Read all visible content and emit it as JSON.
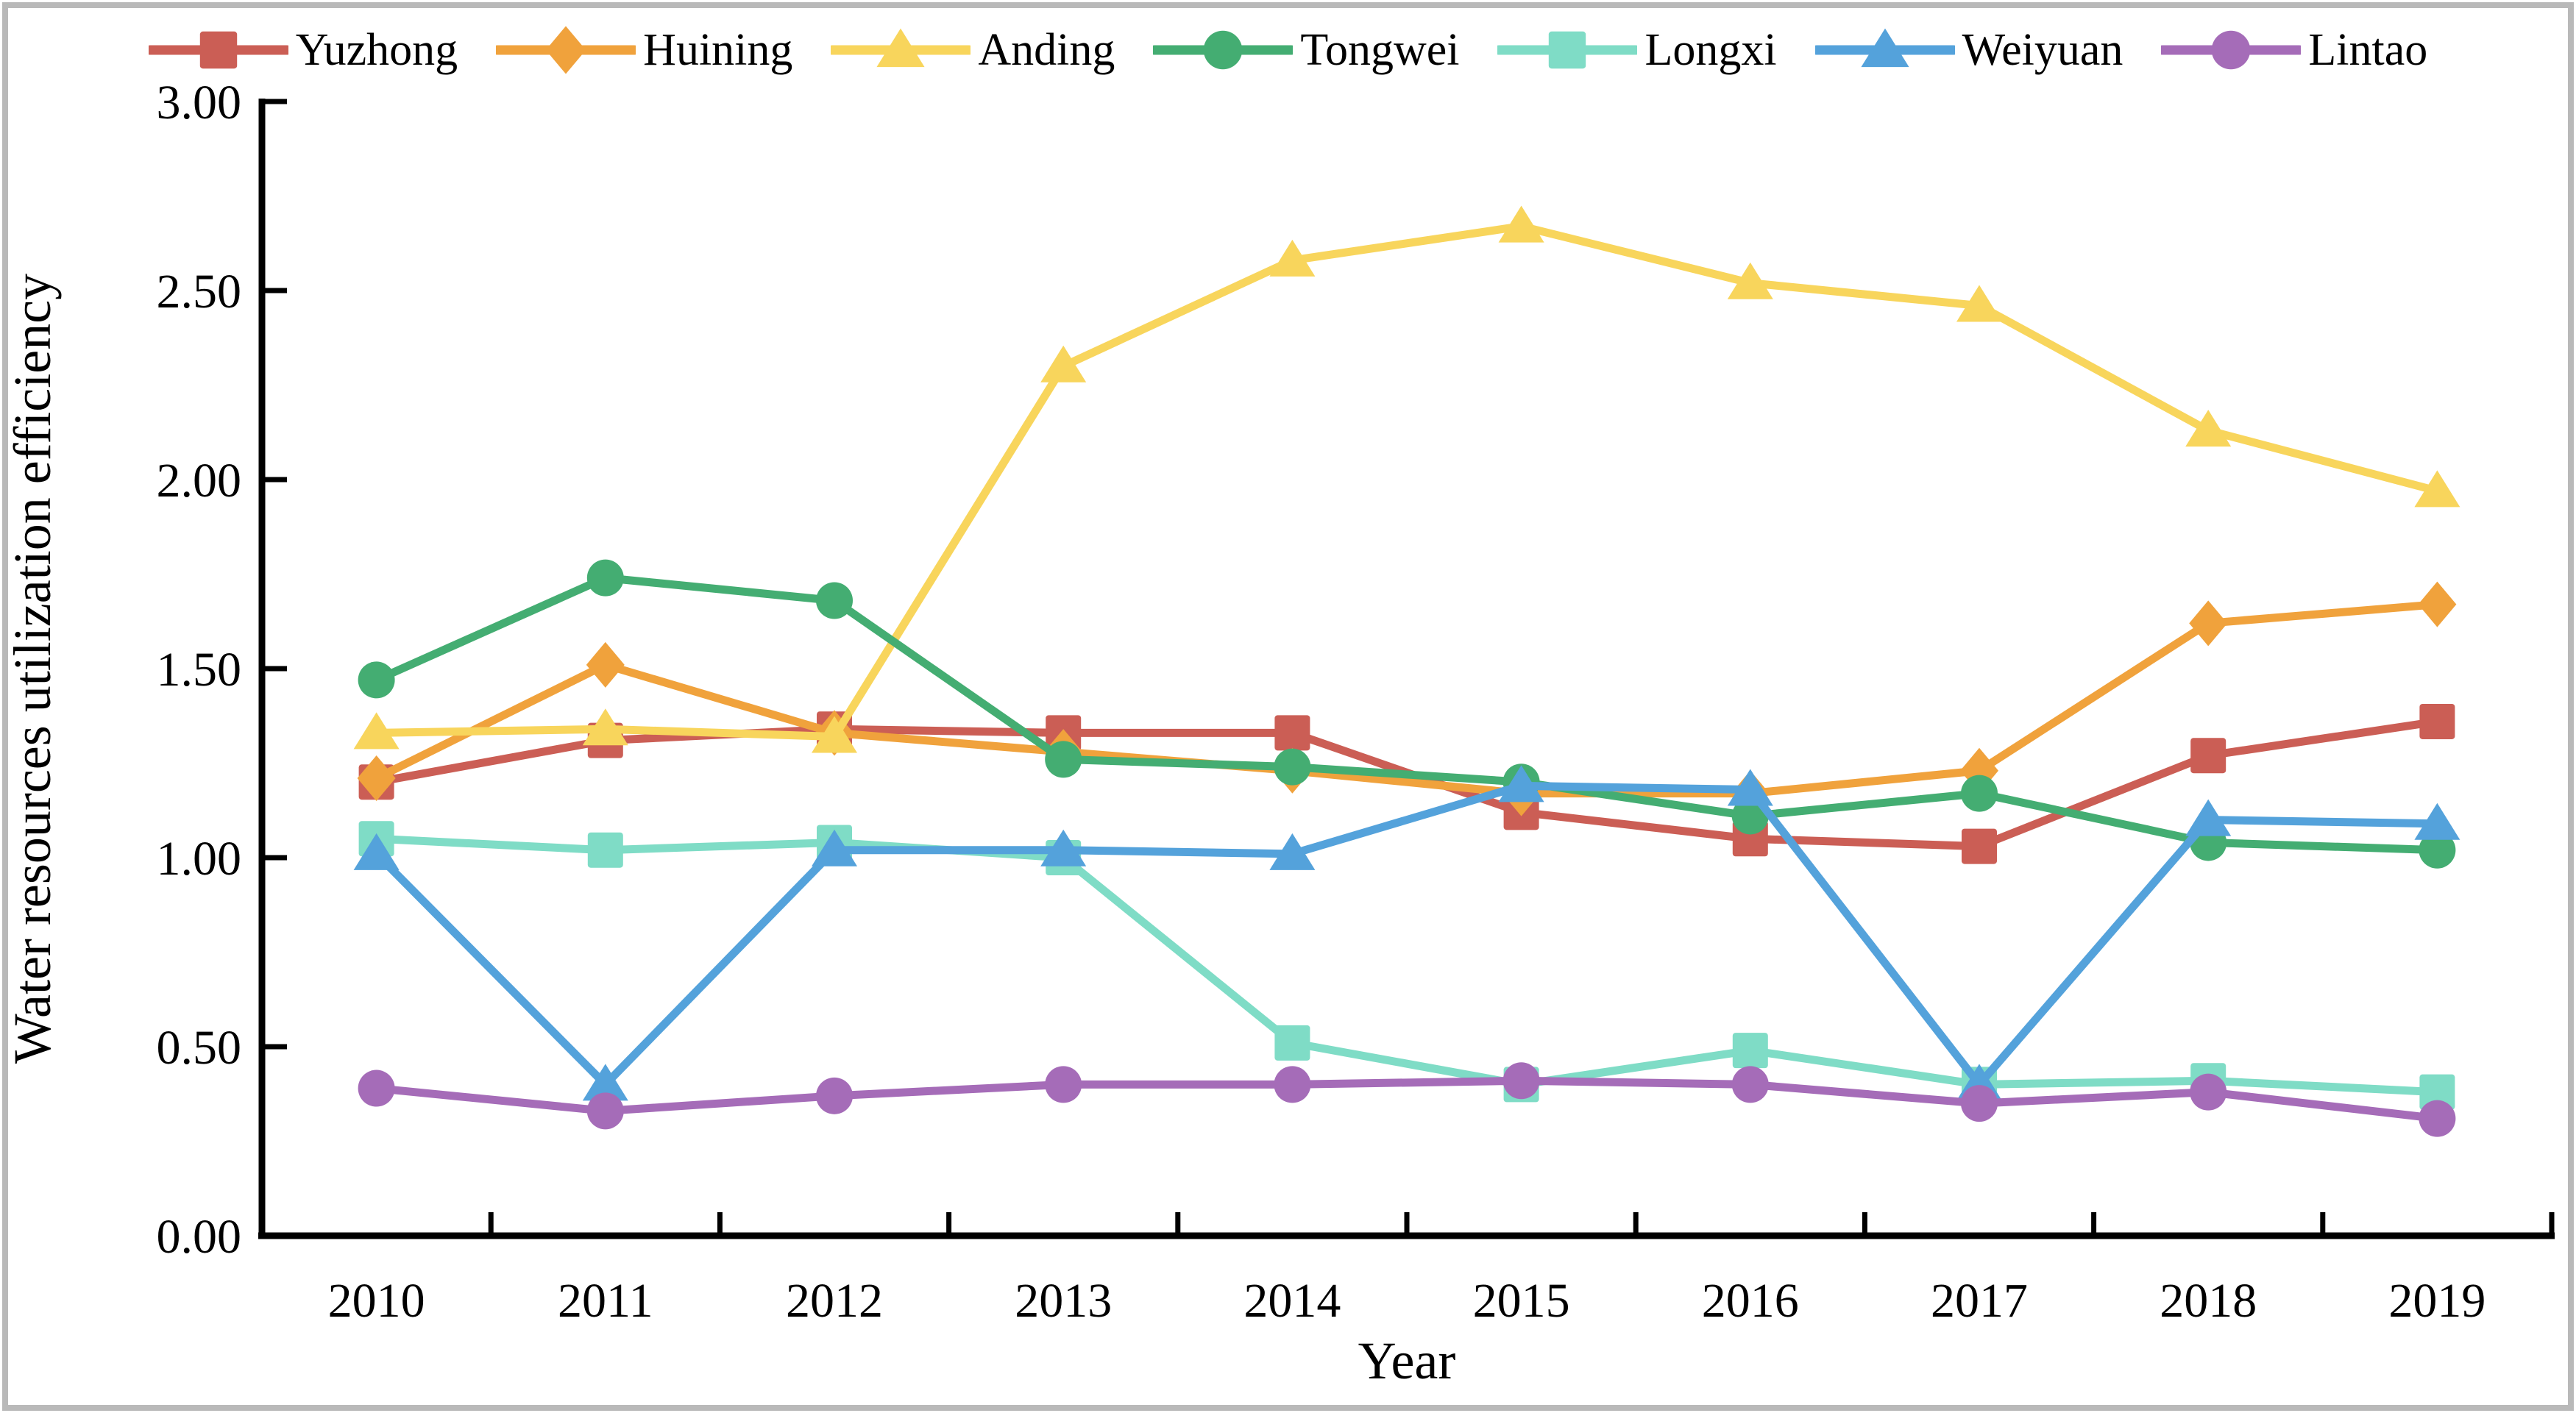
{
  "chart_data": {
    "type": "line",
    "title": "",
    "xlabel": "Year",
    "ylabel": "Water resources utilization efficiency",
    "categories": [
      "2010",
      "2011",
      "2012",
      "2013",
      "2014",
      "2015",
      "2016",
      "2017",
      "2018",
      "2019"
    ],
    "ylim": [
      0.0,
      3.0
    ],
    "ytick_step": 0.5,
    "ytick_labels": [
      "0.00",
      "0.50",
      "1.00",
      "1.50",
      "2.00",
      "2.50",
      "3.00"
    ],
    "grid": false,
    "legend_position": "top",
    "axis_color": "#000000",
    "series": [
      {
        "name": "Yuzhong",
        "color": "#CB5E55",
        "marker": "square",
        "values": [
          1.2,
          1.31,
          1.34,
          1.33,
          1.33,
          1.12,
          1.05,
          1.03,
          1.27,
          1.36
        ]
      },
      {
        "name": "Huining",
        "color": "#F0A23C",
        "marker": "diamond",
        "values": [
          1.21,
          1.51,
          1.33,
          1.28,
          1.23,
          1.17,
          1.17,
          1.23,
          1.62,
          1.67
        ]
      },
      {
        "name": "Anding",
        "color": "#F8D55C",
        "marker": "triangle",
        "values": [
          1.33,
          1.34,
          1.32,
          2.3,
          2.58,
          2.67,
          2.52,
          2.46,
          2.13,
          1.97
        ]
      },
      {
        "name": "Tongwei",
        "color": "#44AD72",
        "marker": "circle",
        "values": [
          1.47,
          1.74,
          1.68,
          1.26,
          1.24,
          1.2,
          1.11,
          1.17,
          1.04,
          1.02
        ]
      },
      {
        "name": "Longxi",
        "color": "#7FDCC6",
        "marker": "square",
        "values": [
          1.05,
          1.02,
          1.04,
          1.0,
          0.51,
          0.4,
          0.49,
          0.4,
          0.41,
          0.38
        ]
      },
      {
        "name": "Weiyuan",
        "color": "#54A2DB",
        "marker": "triangle",
        "values": [
          1.01,
          0.4,
          1.02,
          1.02,
          1.01,
          1.19,
          1.18,
          0.4,
          1.1,
          1.09
        ]
      },
      {
        "name": "Lintao",
        "color": "#A56CB8",
        "marker": "circle",
        "values": [
          0.39,
          0.33,
          0.37,
          0.4,
          0.4,
          0.41,
          0.4,
          0.35,
          0.38,
          0.31
        ]
      }
    ]
  }
}
